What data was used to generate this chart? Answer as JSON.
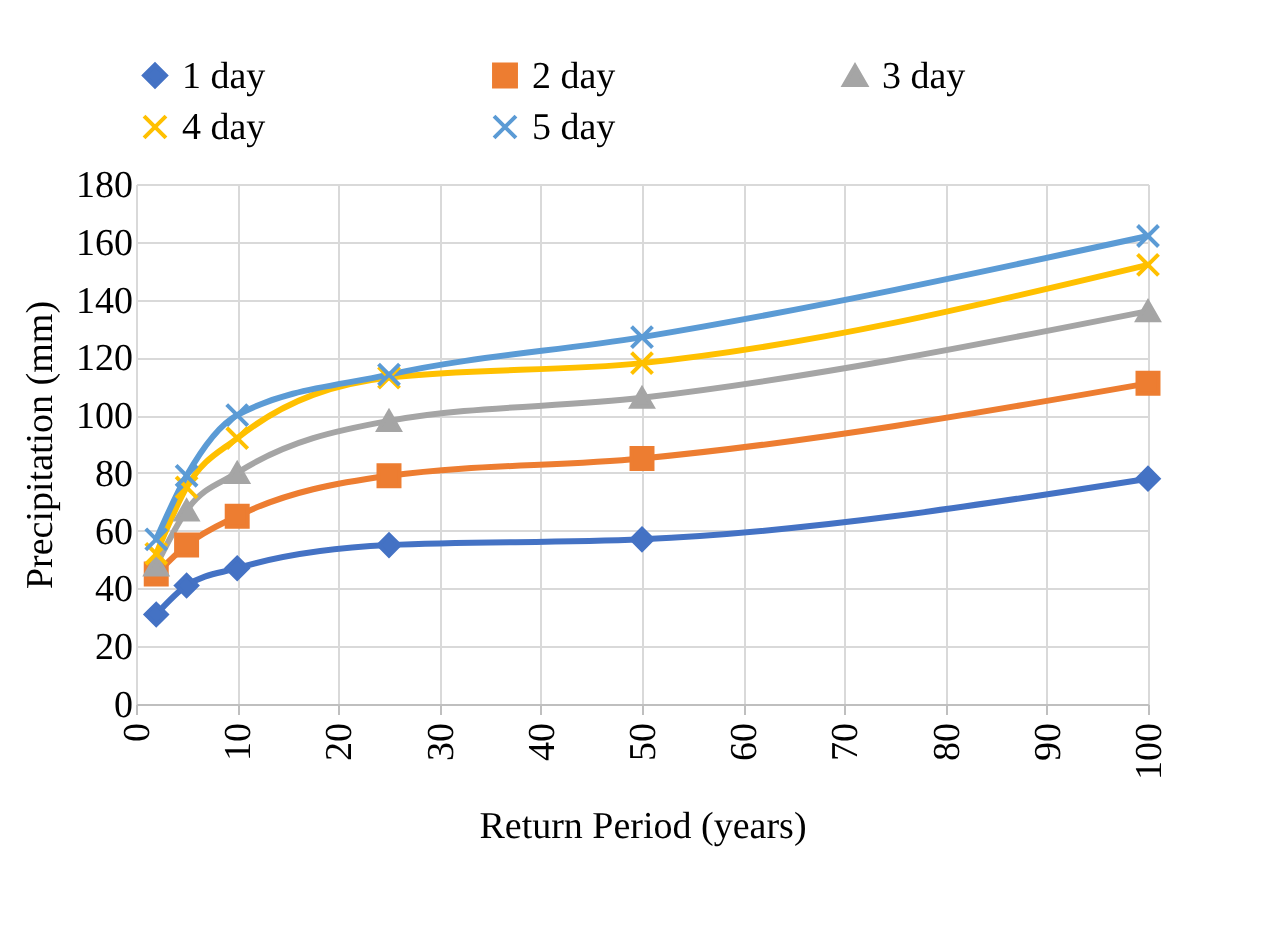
{
  "chart_data": {
    "type": "line",
    "xlabel": "Return Period (years)",
    "ylabel": "Precipitation (mm)",
    "x": [
      2,
      5,
      10,
      25,
      50,
      100
    ],
    "xlim": [
      0,
      100
    ],
    "xticks": [
      0,
      10,
      20,
      30,
      40,
      50,
      60,
      70,
      80,
      90,
      100
    ],
    "ylim": [
      0,
      180
    ],
    "yticks": [
      0,
      20,
      40,
      60,
      80,
      100,
      120,
      140,
      160,
      180
    ],
    "grid": true,
    "legend": "top",
    "line_style": "solid",
    "series": [
      {
        "name": "1 day",
        "color": "#4472c4",
        "marker": "diamond",
        "values": [
          31,
          41,
          47,
          55,
          57,
          78
        ]
      },
      {
        "name": "2 day",
        "color": "#ed7d31",
        "marker": "square",
        "values": [
          45,
          55,
          65,
          79,
          85,
          111
        ]
      },
      {
        "name": "3 day",
        "color": "#a5a5a5",
        "marker": "triangle",
        "values": [
          48,
          67,
          80,
          98,
          106,
          136
        ]
      },
      {
        "name": "4 day",
        "color": "#ffc000",
        "marker": "cross",
        "values": [
          52,
          75,
          92,
          113,
          118,
          152
        ]
      },
      {
        "name": "5 day",
        "color": "#5b9bd5",
        "marker": "cross",
        "values": [
          57,
          79,
          100,
          114,
          127,
          162
        ]
      }
    ]
  }
}
